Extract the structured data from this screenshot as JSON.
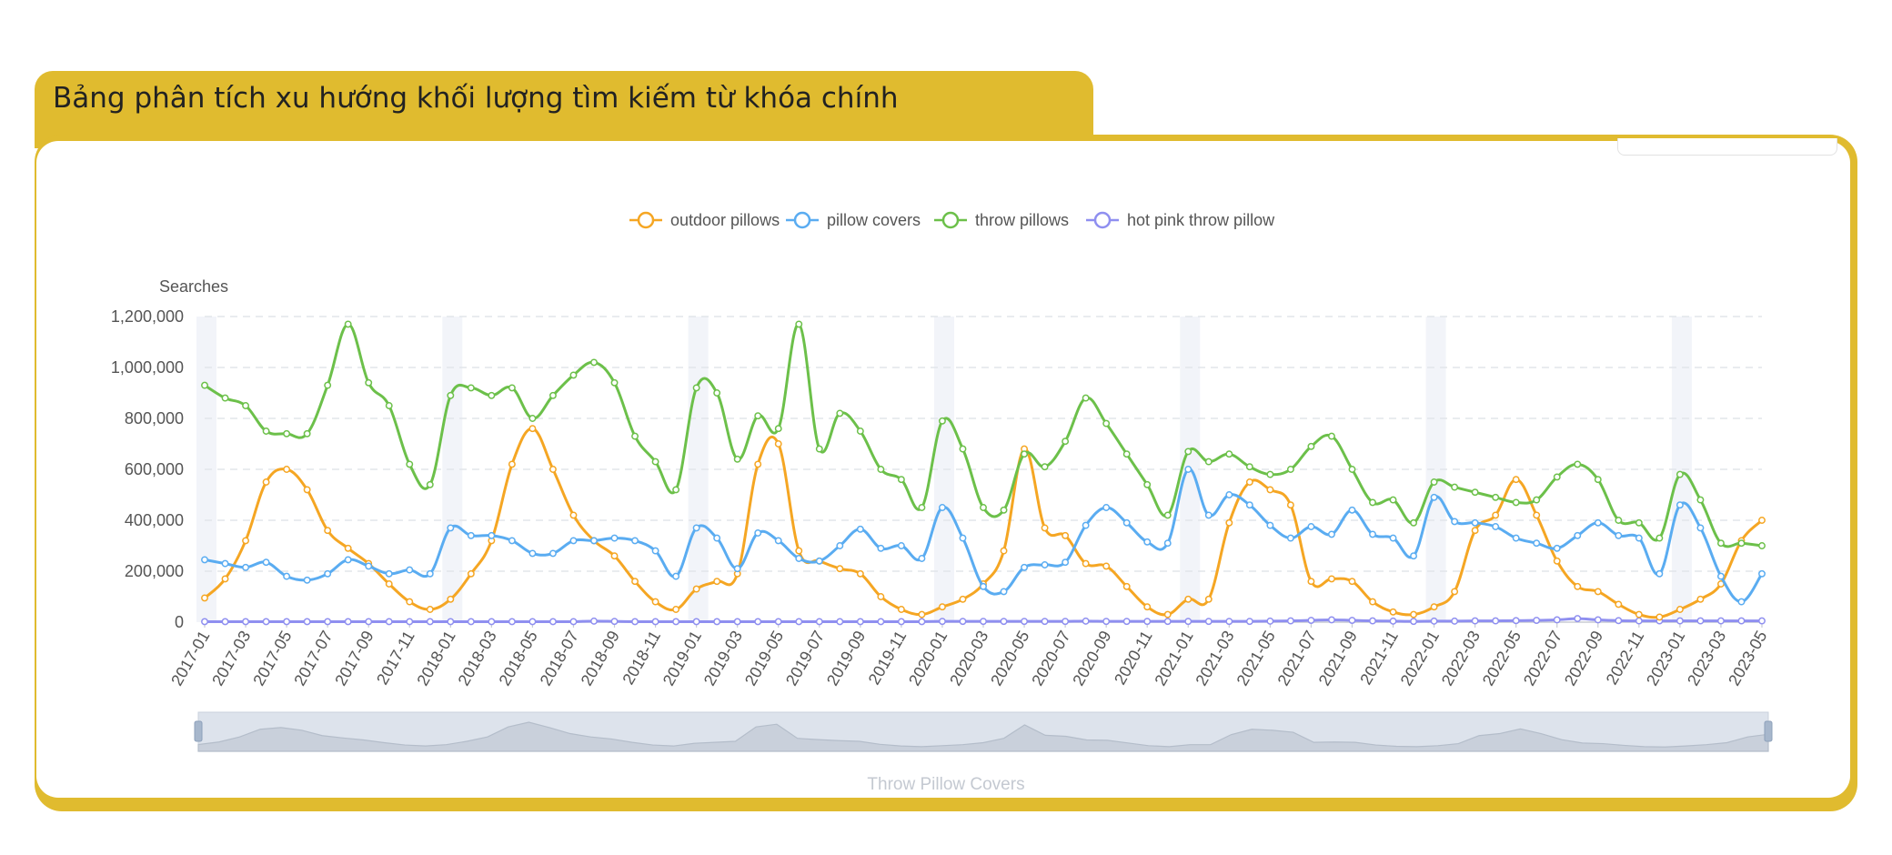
{
  "header": {
    "title": "Bảng phân tích xu hướng khối lượng tìm kiếm từ khóa chính"
  },
  "footer": {
    "caption": "Throw Pillow Covers"
  },
  "colors": {
    "accent": "#e0bb2f",
    "outdoor": "#f5a623",
    "covers": "#5aacf1",
    "throw": "#6cc04a",
    "pink": "#8f8ff0"
  },
  "chart_data": {
    "type": "line",
    "ylabel": "Searches",
    "ylim": [
      0,
      1200000
    ],
    "yticks": [
      0,
      200000,
      400000,
      600000,
      800000,
      1000000,
      1200000
    ],
    "ytick_labels": [
      "0",
      "200,000",
      "400,000",
      "600,000",
      "800,000",
      "1,000,000",
      "1,200,000"
    ],
    "x": [
      "2017-01",
      "2017-02",
      "2017-03",
      "2017-04",
      "2017-05",
      "2017-06",
      "2017-07",
      "2017-08",
      "2017-09",
      "2017-10",
      "2017-11",
      "2017-12",
      "2018-01",
      "2018-02",
      "2018-03",
      "2018-04",
      "2018-05",
      "2018-06",
      "2018-07",
      "2018-08",
      "2018-09",
      "2018-10",
      "2018-11",
      "2018-12",
      "2019-01",
      "2019-02",
      "2019-03",
      "2019-04",
      "2019-05",
      "2019-06",
      "2019-07",
      "2019-08",
      "2019-09",
      "2019-10",
      "2019-11",
      "2019-12",
      "2020-01",
      "2020-02",
      "2020-03",
      "2020-04",
      "2020-05",
      "2020-06",
      "2020-07",
      "2020-08",
      "2020-09",
      "2020-10",
      "2020-11",
      "2020-12",
      "2021-01",
      "2021-02",
      "2021-03",
      "2021-04",
      "2021-05",
      "2021-06",
      "2021-07",
      "2021-08",
      "2021-09",
      "2021-10",
      "2021-11",
      "2021-12",
      "2022-01",
      "2022-02",
      "2022-03",
      "2022-04",
      "2022-05",
      "2022-06",
      "2022-07",
      "2022-08",
      "2022-09",
      "2022-10",
      "2022-11",
      "2022-12",
      "2023-01",
      "2023-02",
      "2023-03",
      "2023-04",
      "2023-05"
    ],
    "xtick_labels": [
      "2017-01",
      "2017-03",
      "2017-05",
      "2017-07",
      "2017-09",
      "2017-11",
      "2018-01",
      "2018-03",
      "2018-05",
      "2018-07",
      "2018-09",
      "2018-11",
      "2019-01",
      "2019-03",
      "2019-05",
      "2019-07",
      "2019-09",
      "2019-11",
      "2020-01",
      "2020-03",
      "2020-05",
      "2020-07",
      "2020-09",
      "2020-11",
      "2021-01",
      "2021-03",
      "2021-05",
      "2021-07",
      "2021-09",
      "2021-11",
      "2022-01",
      "2022-03",
      "2022-05",
      "2022-07",
      "2022-09",
      "2022-11",
      "2023-01",
      "2023-03",
      "2023-05"
    ],
    "legend_position": "top-center",
    "grid": true,
    "series": [
      {
        "name": "outdoor pillows",
        "color": "#f5a623",
        "values": [
          95000,
          170000,
          320000,
          550000,
          600000,
          520000,
          360000,
          290000,
          230000,
          150000,
          80000,
          50000,
          90000,
          190000,
          320000,
          620000,
          760000,
          600000,
          420000,
          320000,
          260000,
          160000,
          80000,
          50000,
          130000,
          160000,
          190000,
          620000,
          700000,
          280000,
          240000,
          210000,
          190000,
          100000,
          50000,
          30000,
          60000,
          90000,
          150000,
          280000,
          680000,
          370000,
          340000,
          230000,
          220000,
          140000,
          60000,
          30000,
          90000,
          90000,
          390000,
          550000,
          520000,
          460000,
          160000,
          170000,
          160000,
          80000,
          40000,
          30000,
          60000,
          120000,
          360000,
          420000,
          560000,
          420000,
          240000,
          140000,
          120000,
          70000,
          30000,
          20000,
          50000,
          90000,
          150000,
          320000,
          400000
        ]
      },
      {
        "name": "pillow covers",
        "color": "#5aacf1",
        "values": [
          245000,
          230000,
          215000,
          235000,
          180000,
          165000,
          190000,
          245000,
          220000,
          190000,
          205000,
          190000,
          370000,
          340000,
          340000,
          320000,
          270000,
          270000,
          320000,
          320000,
          330000,
          320000,
          280000,
          180000,
          370000,
          330000,
          210000,
          350000,
          320000,
          250000,
          240000,
          300000,
          365000,
          290000,
          300000,
          250000,
          450000,
          330000,
          140000,
          120000,
          215000,
          225000,
          235000,
          380000,
          450000,
          390000,
          315000,
          310000,
          600000,
          420000,
          500000,
          460000,
          380000,
          330000,
          375000,
          345000,
          440000,
          345000,
          330000,
          260000,
          490000,
          395000,
          390000,
          375000,
          330000,
          310000,
          290000,
          340000,
          390000,
          340000,
          330000,
          190000,
          460000,
          370000,
          180000,
          80000,
          190000
        ]
      },
      {
        "name": "throw pillows",
        "color": "#6cc04a",
        "values": [
          930000,
          880000,
          850000,
          750000,
          740000,
          740000,
          930000,
          1170000,
          940000,
          850000,
          620000,
          540000,
          890000,
          920000,
          890000,
          920000,
          800000,
          890000,
          970000,
          1020000,
          940000,
          730000,
          630000,
          520000,
          920000,
          900000,
          640000,
          810000,
          760000,
          1170000,
          680000,
          820000,
          750000,
          600000,
          560000,
          450000,
          790000,
          680000,
          450000,
          440000,
          660000,
          610000,
          710000,
          880000,
          780000,
          660000,
          540000,
          420000,
          670000,
          630000,
          660000,
          610000,
          580000,
          600000,
          690000,
          730000,
          600000,
          470000,
          480000,
          390000,
          550000,
          530000,
          510000,
          490000,
          470000,
          480000,
          570000,
          620000,
          560000,
          400000,
          390000,
          330000,
          580000,
          480000,
          310000,
          310000,
          300000
        ]
      },
      {
        "name": "hot pink throw pillow",
        "color": "#8f8ff0",
        "values": [
          2000,
          2000,
          2000,
          2000,
          2000,
          2000,
          2000,
          2000,
          2000,
          2000,
          2000,
          2000,
          2000,
          2000,
          2000,
          2000,
          2000,
          2000,
          2000,
          4000,
          3000,
          2000,
          2000,
          2000,
          2000,
          2000,
          2000,
          2000,
          2000,
          2000,
          2000,
          2000,
          2000,
          2000,
          2000,
          2000,
          3000,
          3000,
          3000,
          3000,
          3000,
          3000,
          3000,
          4000,
          3000,
          3000,
          3000,
          3000,
          3000,
          3000,
          3000,
          3000,
          4000,
          5000,
          7000,
          9000,
          7000,
          5000,
          4000,
          3000,
          4000,
          4000,
          5000,
          5000,
          6000,
          7000,
          9000,
          14000,
          9000,
          6000,
          5000,
          5000,
          5000,
          5000,
          5000,
          5000,
          5000
        ]
      }
    ]
  }
}
